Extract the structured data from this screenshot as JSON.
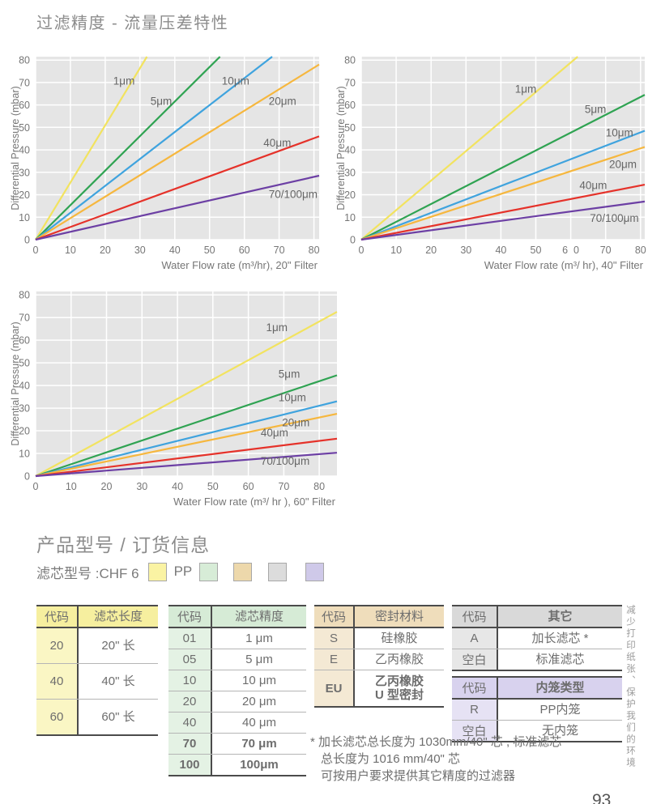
{
  "page": {
    "title": "过滤精度 - 流量压差特性",
    "page_number": "93",
    "eco_note": "减少打印纸张、保护我们的环境"
  },
  "chart_data": [
    {
      "type": "line",
      "name": "chart-20in-filter",
      "xlabel": "Water Flow rate (m³/hr), 20\" Filter",
      "ylabel": "Differential Pressure (mbar)",
      "xmax": 81.5,
      "ymax": 81.5,
      "tick_step": 10,
      "xtick_labels": [
        "0",
        "10",
        "20",
        "30",
        "40",
        "50",
        "60",
        "70",
        "80"
      ],
      "ytick_labels": [
        "0",
        "10",
        "20",
        "30",
        "40",
        "50",
        "60",
        "70",
        "80"
      ],
      "grid": true,
      "series": [
        {
          "name": "1μm",
          "color": "#F2E35F",
          "end": [
            32,
            81.5
          ],
          "label_pos": [
            22.3,
            69
          ]
        },
        {
          "name": "5μm",
          "color": "#2FA352",
          "end": [
            53,
            81.5
          ],
          "label_pos": [
            33,
            60
          ]
        },
        {
          "name": "10μm",
          "color": "#3FA3DE",
          "end": [
            68,
            81.5
          ],
          "label_pos": [
            53.5,
            69
          ]
        },
        {
          "name": "20μm",
          "color": "#F6B73E",
          "end": [
            81.5,
            78
          ],
          "label_pos": [
            67,
            60
          ]
        },
        {
          "name": "40μm",
          "color": "#E5322A",
          "end": [
            81.5,
            46
          ],
          "label_pos": [
            65.5,
            41.5
          ]
        },
        {
          "name": "70/100μm",
          "color": "#6C3FA4",
          "end": [
            81.5,
            28.5
          ],
          "label_pos": [
            67,
            18.5
          ]
        }
      ]
    },
    {
      "type": "line",
      "name": "chart-40in-filter",
      "xlabel": "Water Flow rate (m³/ hr), 40\" Filter",
      "ylabel": "Differential Pressure (mbar)",
      "xmax": 81.2,
      "ymax": 81.5,
      "tick_step": 10,
      "xtick_labels": [
        "0",
        "10",
        "20",
        "30",
        "40",
        "50",
        "6  0",
        "70",
        "80"
      ],
      "ytick_labels": [
        "0",
        "10",
        "20",
        "30",
        "40",
        "50",
        "60",
        "70",
        "80"
      ],
      "grid": true,
      "series": [
        {
          "name": "1μm",
          "color": "#F2E35F",
          "end": [
            62,
            81.5
          ],
          "label_pos": [
            44,
            65.5
          ]
        },
        {
          "name": "5μm",
          "color": "#2FA352",
          "end": [
            81.2,
            64.5
          ],
          "label_pos": [
            64,
            56.5
          ]
        },
        {
          "name": "10μm",
          "color": "#3FA3DE",
          "end": [
            81.2,
            48.5
          ],
          "label_pos": [
            70,
            46
          ]
        },
        {
          "name": "20μm",
          "color": "#F6B73E",
          "end": [
            81.2,
            41.3
          ],
          "label_pos": [
            71,
            32
          ]
        },
        {
          "name": "40μm",
          "color": "#E5322A",
          "end": [
            81.2,
            24.5
          ],
          "label_pos": [
            62.5,
            22.5
          ]
        },
        {
          "name": "70/100μm",
          "color": "#6C3FA4",
          "end": [
            81.2,
            17
          ],
          "label_pos": [
            65.5,
            8
          ]
        }
      ]
    },
    {
      "type": "line",
      "name": "chart-60in-filter",
      "xlabel": "Water Flow rate (m³/ hr ), 60\" Filter",
      "ylabel": "Differential Pressure (mbar)",
      "xmax": 85,
      "ymax": 81.5,
      "tick_step": 10,
      "xtick_labels": [
        "0",
        "10",
        "20",
        "30",
        "40",
        "50",
        "60",
        "70",
        "80"
      ],
      "ytick_labels": [
        "0",
        "10",
        "20",
        "30",
        "40",
        "50",
        "60",
        "70",
        "80"
      ],
      "grid": true,
      "series": [
        {
          "name": "1μm",
          "color": "#F2E35F",
          "end": [
            85,
            72.5
          ],
          "label_pos": [
            65,
            64
          ]
        },
        {
          "name": "5μm",
          "color": "#2FA352",
          "end": [
            85,
            44.5
          ],
          "label_pos": [
            68.5,
            43.5
          ]
        },
        {
          "name": "10μm",
          "color": "#3FA3DE",
          "end": [
            85,
            33
          ],
          "label_pos": [
            68.5,
            33
          ]
        },
        {
          "name": "20μm",
          "color": "#F6B73E",
          "end": [
            85,
            27.5
          ],
          "label_pos": [
            69.5,
            22
          ]
        },
        {
          "name": "40μm",
          "color": "#E5322A",
          "end": [
            85,
            16.5
          ],
          "label_pos": [
            63.5,
            17.5
          ]
        },
        {
          "name": "70/100μm",
          "color": "#6C3FA4",
          "end": [
            85,
            10.3
          ],
          "label_pos": [
            63.5,
            5
          ]
        }
      ]
    }
  ],
  "ordering": {
    "title": "产品型号 / 订货信息",
    "model_label": "滤芯型号 :CHF 6",
    "pp_label": "PP",
    "swatches": [
      {
        "name": "filter-length-swatch",
        "color": "#FAF3A3"
      },
      {
        "name": "filter-precision-swatch",
        "color": "#D7ECD7"
      },
      {
        "name": "seal-material-swatch",
        "color": "#EDD8AB"
      },
      {
        "name": "other-swatch",
        "color": "#DCDCDC"
      },
      {
        "name": "cage-type-swatch",
        "color": "#CFC9E9"
      }
    ]
  },
  "tables": [
    {
      "name": "filter-length",
      "header": [
        "代码",
        "滤芯长度"
      ],
      "value_header_bold": false,
      "header_bg": "#F6EF9F",
      "code_bg": "#FAF6C4",
      "rows": [
        {
          "code": "20",
          "value": "20\" 长",
          "bold": false
        },
        {
          "code": "40",
          "value": "40\" 长",
          "bold": false
        },
        {
          "code": "60",
          "value": "60\" 长",
          "bold": false
        }
      ]
    },
    {
      "name": "filter-precision",
      "header": [
        "代码",
        "滤芯精度"
      ],
      "value_header_bold": false,
      "header_bg": "#D6EBD6",
      "code_bg": "#E4F2E4",
      "rows": [
        {
          "code": "01",
          "value": "1 μm",
          "bold": false
        },
        {
          "code": "05",
          "value": "5 μm",
          "bold": false
        },
        {
          "code": "10",
          "value": "10 μm",
          "bold": false
        },
        {
          "code": "20",
          "value": "20 μm",
          "bold": false
        },
        {
          "code": "40",
          "value": "40 μm",
          "bold": false
        },
        {
          "code": "70",
          "value": "70 μm",
          "bold": true
        },
        {
          "code": "100",
          "value": "100μm",
          "bold": true
        }
      ]
    },
    {
      "name": "seal-material",
      "header": [
        "代码",
        "密封材料"
      ],
      "value_header_bold": false,
      "header_bg": "#EFDDBB",
      "code_bg": "#F4E9D4",
      "rows": [
        {
          "code": "S",
          "value": "硅橡胶",
          "bold": false
        },
        {
          "code": "E",
          "value": "乙丙橡胶",
          "bold": false
        },
        {
          "code": "EU",
          "value": "乙丙橡胶\nU 型密封",
          "bold": true
        }
      ]
    },
    {
      "name": "other",
      "header": [
        "代码",
        "其它"
      ],
      "value_header_bold": true,
      "header_bg": "#D9D9D9",
      "code_bg": "#E7E7E7",
      "rows": [
        {
          "code": "A",
          "value": "加长滤芯 *",
          "bold": false
        },
        {
          "code": "空白",
          "value": "标准滤芯",
          "bold": false
        }
      ]
    },
    {
      "name": "cage-type",
      "header": [
        "代码",
        "内笼类型"
      ],
      "value_header_bold": true,
      "header_bg": "#D8D2EE",
      "code_bg": "#E6E2F4",
      "rows": [
        {
          "code": "R",
          "value": "PP内笼",
          "bold": false
        },
        {
          "code": "空白",
          "value": "无内笼",
          "bold": false
        }
      ]
    }
  ],
  "footnote": {
    "line1": "* 加长滤芯总长度为 1030mm/40\" 芯 , 标准滤芯",
    "line2": "总长度为 1016 mm/40\" 芯",
    "line3": "可按用户要求提供其它精度的过滤器"
  }
}
